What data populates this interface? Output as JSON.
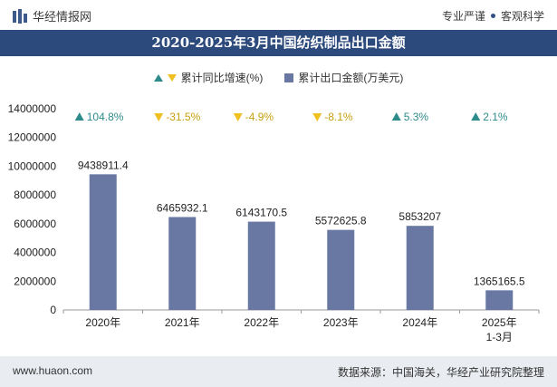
{
  "header": {
    "brand_name": "华经情报网",
    "tagline_left": "专业严谨",
    "tagline_right": "客观科学"
  },
  "title": "2020-2025年3月中国纺织制品出口金额",
  "legend": {
    "growth_label": "累计同比增速(%)",
    "export_label": "累计出口金额(万美元)"
  },
  "colors": {
    "bar": "#6878a3",
    "up": "#2e8b8b",
    "down": "#f0c020",
    "title_bg": "#2d4a7c"
  },
  "chart_data": {
    "type": "bar",
    "categories": [
      "2020年",
      "2021年",
      "2022年",
      "2023年",
      "2024年",
      "2025年\n1-3月"
    ],
    "series": [
      {
        "name": "累计出口金额(万美元)",
        "values": [
          9438911.4,
          6465932.1,
          6143170.5,
          5572625.8,
          5853207,
          1365165.5
        ]
      },
      {
        "name": "累计同比增速(%)",
        "values": [
          104.8,
          -31.5,
          -4.9,
          -8.1,
          5.3,
          2.1
        ]
      }
    ],
    "value_labels": [
      "9438911.4",
      "6465932.1",
      "6143170.5",
      "5572625.8",
      "5853207",
      "1365165.5"
    ],
    "growth_labels": [
      "104.8%",
      "-31.5%",
      "-4.9%",
      "-8.1%",
      "5.3%",
      "2.1%"
    ],
    "yticks": [
      "0",
      "2000000",
      "4000000",
      "6000000",
      "8000000",
      "10000000",
      "12000000",
      "14000000"
    ],
    "ylim": [
      0,
      14000000
    ]
  },
  "footer": {
    "url": "www.huaon.com",
    "source": "数据来源：中国海关，华经产业研究院整理"
  }
}
